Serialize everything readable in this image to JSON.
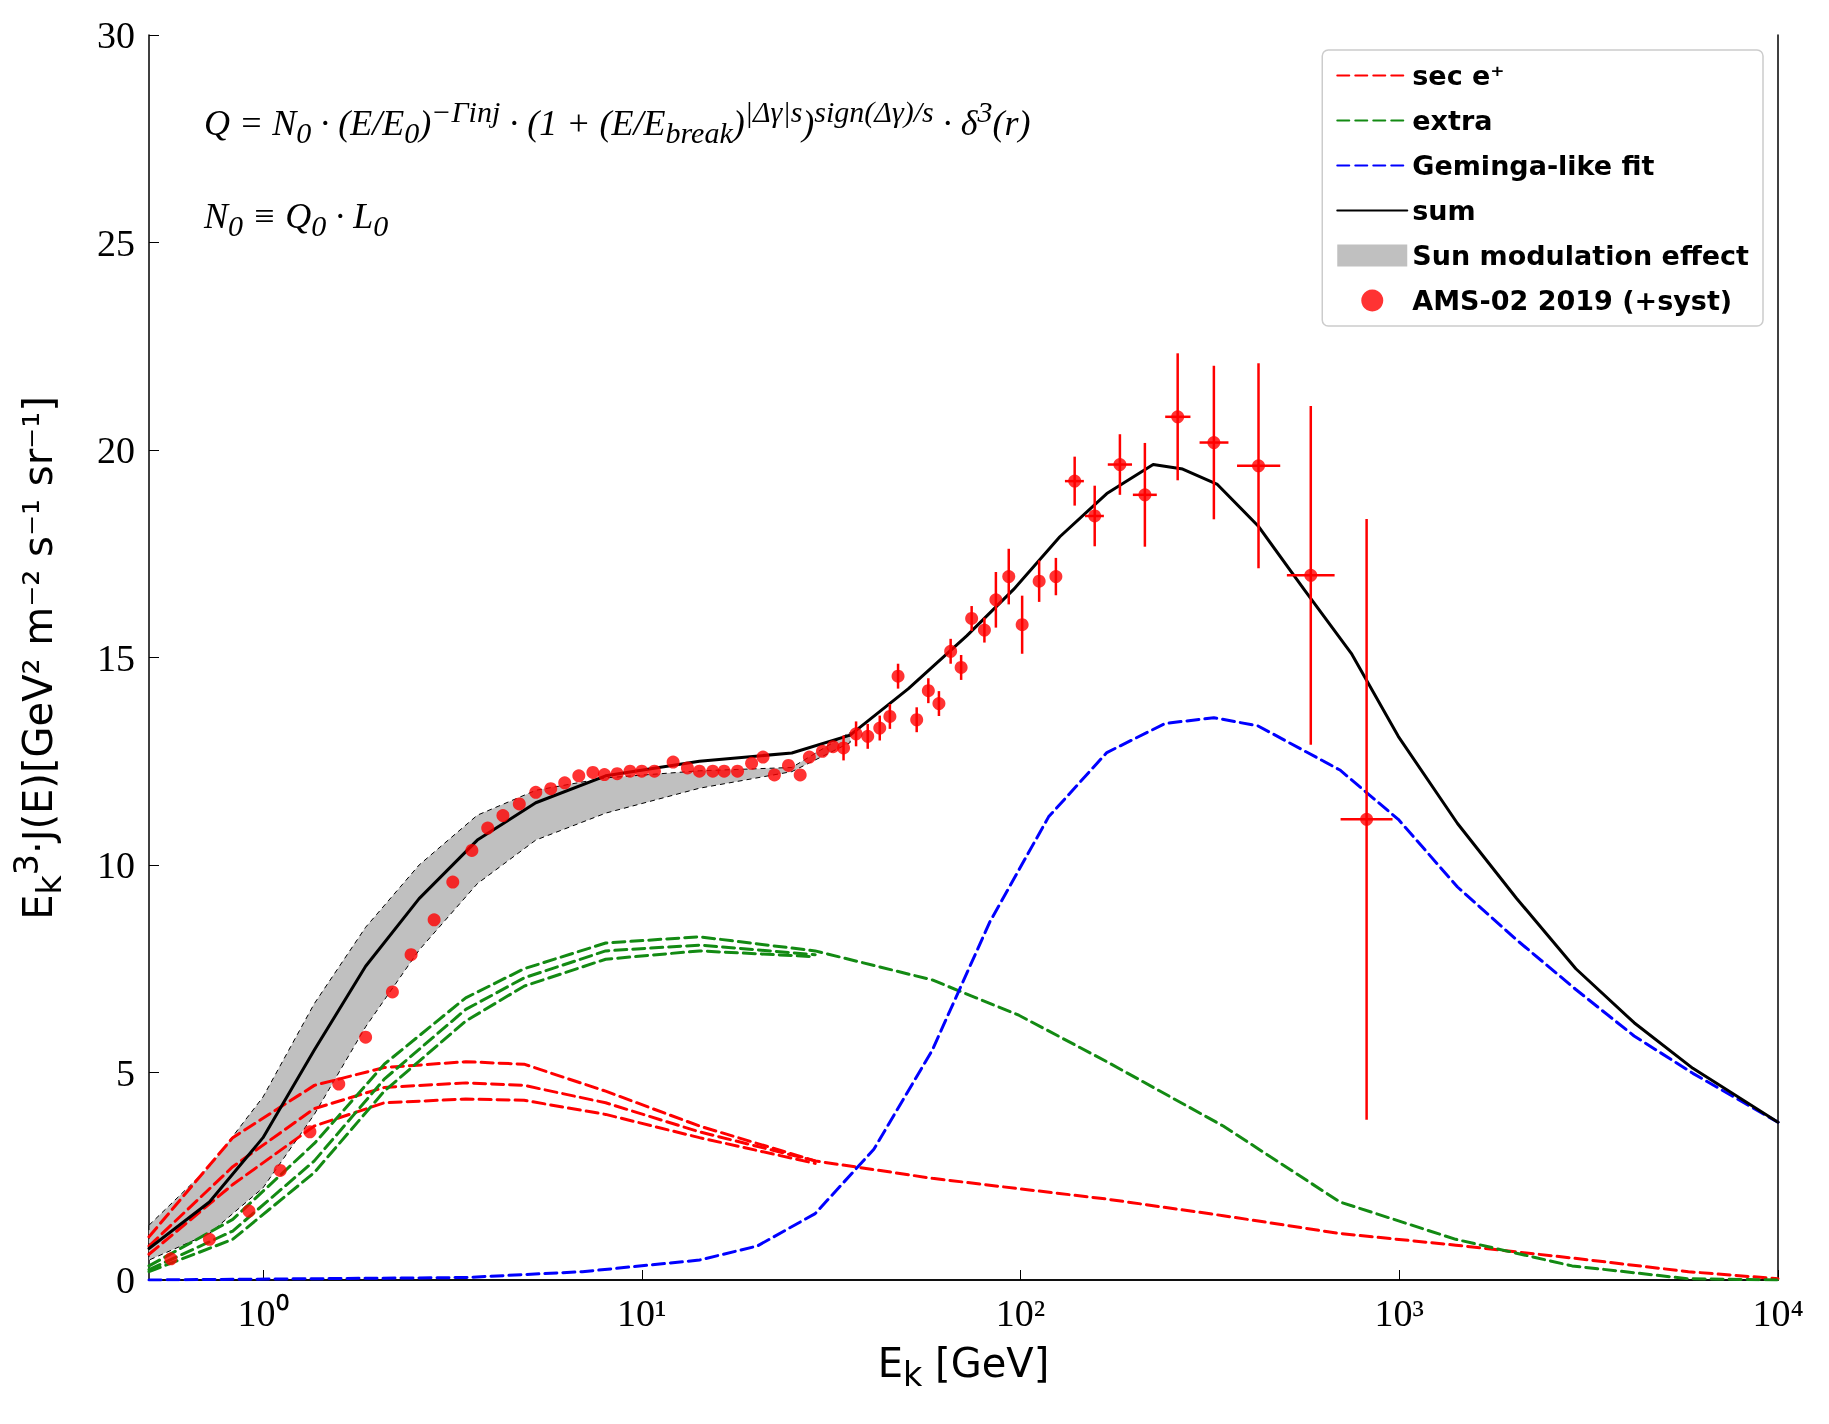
{
  "chart_data": {
    "type": "line",
    "xlabel": "E$_{k}$ [GeV]",
    "ylabel": "E$_{k}$$^{3}$·J(E)[GeV² m⁻² s⁻¹ sr⁻¹]",
    "annotations": [
      "Q = N$_{0}$ · (E/E$_{0}$)$^{−Γinj}$ · (1 + (E/E$_{break}$)$^{|Δγ|s}$)$^{sign(Δγ)/s}$ · δ$^{3}$(r)",
      "N$_{0}$ ≡ Q$_{0}$ · L$_{0}$"
    ],
    "log": "x",
    "xlim": [
      0.5,
      10000
    ],
    "xticks": [
      {
        "value": 1,
        "label": "10⁰"
      },
      {
        "value": 10,
        "label": "10¹"
      },
      {
        "value": 100,
        "label": "10²"
      },
      {
        "value": 1000,
        "label": "10³"
      },
      {
        "value": 10000,
        "label": "10⁴"
      }
    ],
    "ylim": [
      0,
      30
    ],
    "yticks": [
      0,
      5,
      10,
      15,
      20,
      25,
      30
    ],
    "legend": "top right",
    "marker": "none",
    "series": [
      {
        "name": "sec e⁺",
        "type": "line",
        "color": "#ff0000",
        "line_style": "dashed",
        "x": [
          0.5,
          0.832,
          1.366,
          2.09,
          3.43,
          4.89,
          8.03,
          14.2,
          28.7,
          58.5,
          99,
          169,
          343,
          697,
          1410,
          2860,
          5800,
          10000
        ],
        "values": [
          1.04,
          3.43,
          4.69,
          5.12,
          5.26,
          5.2,
          4.55,
          3.71,
          2.87,
          2.45,
          2.2,
          1.95,
          1.55,
          1.12,
          0.84,
          0.53,
          0.2,
          0.03
        ]
      },
      {
        "type": "line",
        "color": "#ff0000",
        "line_style": "dashed",
        "x": [
          0.5,
          0.832,
          1.366,
          2.09,
          3.43,
          4.89,
          8.03,
          14.2,
          28.7
        ],
        "values": [
          0.82,
          2.73,
          4.13,
          4.64,
          4.75,
          4.69,
          4.27,
          3.57,
          2.87
        ]
      },
      {
        "type": "line",
        "color": "#ff0000",
        "line_style": "dashed",
        "x": [
          0.5,
          0.832,
          1.366,
          2.09,
          3.43,
          4.89,
          8.03,
          14.2,
          28.7
        ],
        "values": [
          0.62,
          2.3,
          3.71,
          4.27,
          4.36,
          4.33,
          3.99,
          3.43,
          2.81
        ]
      },
      {
        "name": "extra",
        "type": "line",
        "color": "#138a13",
        "line_style": "dashed",
        "x": [
          0.5,
          0.832,
          1.366,
          2.09,
          3.43,
          4.89,
          8.03,
          14.2,
          28.7,
          58.5,
          99,
          169,
          343,
          697,
          1410,
          2860,
          5800,
          10000
        ],
        "values": [
          0.34,
          1.46,
          3.29,
          5.2,
          6.8,
          7.5,
          8.12,
          8.27,
          7.93,
          7.23,
          6.38,
          5.26,
          3.71,
          1.88,
          0.98,
          0.34,
          0.03,
          0
        ]
      },
      {
        "type": "line",
        "color": "#138a13",
        "line_style": "dashed",
        "x": [
          0.5,
          0.832,
          1.366,
          2.09,
          3.43,
          4.89,
          8.03,
          14.2,
          28.7
        ],
        "values": [
          0.25,
          1.18,
          2.87,
          4.84,
          6.52,
          7.28,
          7.93,
          8.07,
          7.84
        ]
      },
      {
        "type": "line",
        "color": "#138a13",
        "line_style": "dashed",
        "x": [
          0.5,
          0.832,
          1.366,
          2.09,
          3.43,
          4.89,
          8.03,
          14.2,
          28.7
        ],
        "values": [
          0.2,
          0.98,
          2.59,
          4.55,
          6.24,
          7.08,
          7.73,
          7.93,
          7.79
        ]
      },
      {
        "name": "Geminga-like fit",
        "type": "line",
        "color": "#0000ff",
        "line_style": "dashed",
        "x": [
          0.5,
          3.43,
          6.97,
          14.2,
          20.2,
          28.7,
          41,
          58.5,
          83,
          118.6,
          169,
          241,
          324,
          424,
          697,
          994,
          1425,
          2039,
          2926,
          4170,
          5960,
          10000
        ],
        "values": [
          0,
          0.06,
          0.2,
          0.48,
          0.82,
          1.6,
          3.15,
          5.54,
          8.63,
          11.16,
          12.71,
          13.41,
          13.55,
          13.35,
          12.29,
          11.1,
          9.47,
          8.2,
          7.0,
          5.88,
          4.98,
          3.8
        ]
      },
      {
        "name": "sum",
        "type": "line",
        "color": "#000000",
        "line_style": "solid",
        "x": [
          0.5,
          0.722,
          1.0,
          1.366,
          1.866,
          2.583,
          3.68,
          5.25,
          8.03,
          14.2,
          24.9,
          35.5,
          50.6,
          72.1,
          95.9,
          127,
          169,
          224,
          268,
          331,
          424,
          563,
          747,
          994,
          1425,
          2039,
          2926,
          4170,
          5960,
          10000
        ],
        "values": [
          0.76,
          1.88,
          3.43,
          5.54,
          7.56,
          9.19,
          10.6,
          11.5,
          12.15,
          12.5,
          12.7,
          13.13,
          14.25,
          15.52,
          16.64,
          17.91,
          18.95,
          19.65,
          19.54,
          19.17,
          18.17,
          16.62,
          15.1,
          13.1,
          11.0,
          9.2,
          7.5,
          6.2,
          5.1,
          3.8
        ],
        "lower": [
          0.48,
          1.12,
          2.22,
          3.99,
          6.1,
          7.95,
          9.55,
          10.6,
          11.25,
          11.85,
          12.25,
          12.95,
          null,
          null,
          null,
          null,
          null,
          null,
          null,
          null,
          null,
          null,
          null,
          null,
          null,
          null,
          null,
          null,
          null,
          null
        ],
        "upper": [
          1.32,
          2.73,
          4.41,
          6.66,
          8.5,
          10.0,
          11.2,
          11.8,
          12.1,
          12.27,
          12.35,
          13.2,
          null,
          null,
          null,
          null,
          null,
          null,
          null,
          null,
          null,
          null,
          null,
          null,
          null,
          null,
          null,
          null,
          null,
          null
        ]
      },
      {
        "name": "Sun modulation effect",
        "type": "area",
        "color": "#c0c0c0"
      },
      {
        "name": "AMS-02 2019 (+syst)",
        "type": "scatter",
        "marker": "circle",
        "color": "#ff0000",
        "x": [
          0.571,
          0.722,
          0.918,
          1.11,
          1.33,
          1.585,
          1.866,
          2.196,
          2.46,
          2.83,
          3.17,
          3.56,
          3.92,
          4.3,
          4.75,
          5.25,
          5.75,
          6.26,
          6.82,
          7.43,
          7.97,
          8.61,
          9.31,
          10.0,
          10.8,
          12.1,
          13.2,
          14.2,
          15.4,
          16.5,
          17.9,
          19.5,
          20.9,
          22.4,
          24.4,
          26.2,
          27.7,
          30.0,
          32.0,
          34.1,
          36.8,
          39.5,
          42.5,
          45.2,
          47.5,
          53.2,
          57.1,
          60.9,
          65.4,
          69.7,
          74.3,
          80.3,
          86.1,
          93.1,
          101,
          112,
          124,
          139,
          157,
          183,
          213,
          260,
          324,
          425,
          584,
          820
        ],
        "values": [
          0.51,
          0.98,
          1.66,
          2.64,
          3.57,
          4.72,
          5.85,
          6.94,
          7.84,
          8.68,
          9.59,
          10.35,
          10.89,
          11.19,
          11.47,
          11.75,
          11.84,
          11.98,
          12.15,
          12.23,
          12.18,
          12.2,
          12.26,
          12.26,
          12.26,
          12.48,
          12.34,
          12.26,
          12.26,
          12.26,
          12.26,
          12.45,
          12.6,
          12.17,
          12.4,
          12.17,
          12.6,
          12.74,
          12.85,
          12.82,
          13.16,
          13.1,
          13.3,
          13.58,
          14.55,
          13.5,
          14.2,
          13.89,
          15.15,
          14.76,
          15.94,
          15.66,
          16.39,
          16.95,
          15.79,
          16.84,
          16.95,
          19.25,
          18.41,
          19.65,
          18.92,
          20.8,
          20.18,
          19.62,
          16.98,
          11.1
        ],
        "errors": [
          null,
          null,
          null,
          null,
          null,
          null,
          null,
          null,
          null,
          null,
          null,
          null,
          null,
          null,
          null,
          null,
          null,
          null,
          null,
          null,
          null,
          null,
          null,
          null,
          null,
          null,
          null,
          null,
          null,
          null,
          null,
          null,
          null,
          null,
          null,
          null,
          null,
          null,
          null,
          0.3,
          0.3,
          0.3,
          0.3,
          0.3,
          0.3,
          0.3,
          0.3,
          0.3,
          0.3,
          0.3,
          0.3,
          0.3,
          0.67,
          0.67,
          0.7,
          0.5,
          0.45,
          0.59,
          0.73,
          0.73,
          1.25,
          1.53,
          1.85,
          2.47,
          4.08,
          7.24
        ],
        "xerrors": [
          null,
          null,
          null,
          null,
          null,
          null,
          null,
          null,
          null,
          null,
          null,
          null,
          null,
          null,
          null,
          null,
          null,
          null,
          null,
          null,
          null,
          null,
          null,
          null,
          null,
          null,
          null,
          null,
          null,
          null,
          null,
          null,
          null,
          null,
          null,
          null,
          null,
          null,
          null,
          null,
          null,
          null,
          null,
          null,
          null,
          null,
          null,
          null,
          null,
          null,
          null,
          null,
          null,
          null,
          null,
          null,
          null,
          [
            131,
            147
          ],
          [
            148,
            166
          ],
          [
            170,
            197
          ],
          [
            198,
            229
          ],
          [
            241,
            281
          ],
          [
            297,
            354
          ],
          [
            373,
            485
          ],
          [
            505,
            675
          ],
          [
            700,
            960
          ]
        ]
      }
    ]
  }
}
